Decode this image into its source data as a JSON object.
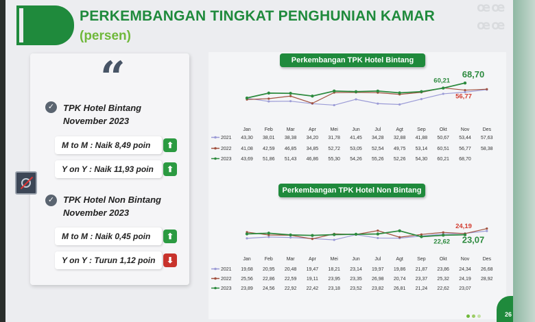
{
  "header": {
    "title": "PERKEMBANGAN TINGKAT PENGHUNIAN KAMAR",
    "subtitle": "(persen)"
  },
  "summary": {
    "quote_mark": "“",
    "bintang": {
      "title_line1": "TPK Hotel Bintang",
      "title_line2": "November 2023",
      "mtm": "M to M : Naik 8,49 poin",
      "mtm_dir": "up",
      "yoy": "Y on Y : Naik 11,93 poin",
      "yoy_dir": "up"
    },
    "non_bintang": {
      "title_line1": "TPK Hotel Non Bintang",
      "title_line2": "November 2023",
      "mtm": "M to M : Naik 0,45 poin",
      "mtm_dir": "up",
      "yoy": "Y on Y : Turun 1,12 poin",
      "yoy_dir": "down"
    }
  },
  "footer": {
    "page_number": "26"
  },
  "colors": {
    "brand_green": "#1f8a3c",
    "light_green": "#6fb83a",
    "series_2021": "#9b9bd6",
    "series_2022": "#a1503e",
    "series_2023": "#2c8a3e",
    "highlight_red": "#d23a2e"
  },
  "chart_data": [
    {
      "type": "line",
      "title": "Perkembangan TPK Hotel Bintang",
      "categories": [
        "Jan",
        "Feb",
        "Mar",
        "Apr",
        "Mei",
        "Jun",
        "Jul",
        "Agt",
        "Sep",
        "Okt",
        "Nov",
        "Des"
      ],
      "series": [
        {
          "name": "2021",
          "values": [
            "43,30",
            "38,01",
            "38,38",
            "34,20",
            "31,78",
            "41,45",
            "34,28",
            "32,88",
            "41,88",
            "50,67",
            "53,44",
            "57,63"
          ]
        },
        {
          "name": "2022",
          "values": [
            "41,08",
            "42,59",
            "46,85",
            "34,85",
            "52,72",
            "53,05",
            "52,54",
            "49,75",
            "53,14",
            "60,51",
            "56,77",
            "58,38"
          ]
        },
        {
          "name": "2023",
          "values": [
            "43,69",
            "51,86",
            "51,43",
            "46,86",
            "55,30",
            "54,26",
            "55,26",
            "52,26",
            "54,30",
            "60,21",
            "68,70",
            null
          ]
        }
      ],
      "callouts": [
        {
          "text": "60,21",
          "series": "2023",
          "category": "Okt"
        },
        {
          "text": "68,70",
          "series": "2023",
          "category": "Nov"
        },
        {
          "text": "56,77",
          "series": "2022",
          "category": "Nov"
        }
      ],
      "grid": false,
      "legend": "table-below"
    },
    {
      "type": "line",
      "title": "Perkembangan TPK Hotel Non Bintang",
      "categories": [
        "Jan",
        "Feb",
        "Mar",
        "Apr",
        "Mei",
        "Jun",
        "Jul",
        "Agt",
        "Sep",
        "Okt",
        "Nov",
        "Des"
      ],
      "series": [
        {
          "name": "2021",
          "values": [
            "19,68",
            "20,95",
            "20,48",
            "19,47",
            "18,21",
            "23,14",
            "19,97",
            "19,86",
            "21,87",
            "23,86",
            "24,34",
            "26,68"
          ]
        },
        {
          "name": "2022",
          "values": [
            "25,56",
            "22,86",
            "22,59",
            "19,11",
            "23,95",
            "23,35",
            "26,98",
            "20,74",
            "23,37",
            "25,32",
            "24,19",
            "28,92"
          ]
        },
        {
          "name": "2023",
          "values": [
            "23,89",
            "24,56",
            "22,92",
            "22,42",
            "23,18",
            "23,52",
            "23,82",
            "26,81",
            "21,24",
            "22,62",
            "23,07",
            null
          ]
        }
      ],
      "callouts": [
        {
          "text": "24,19",
          "series": "2022",
          "category": "Nov"
        },
        {
          "text": "22,62",
          "series": "2023",
          "category": "Okt"
        },
        {
          "text": "23,07",
          "series": "2023",
          "category": "Nov"
        }
      ],
      "grid": false,
      "legend": "table-below"
    }
  ]
}
